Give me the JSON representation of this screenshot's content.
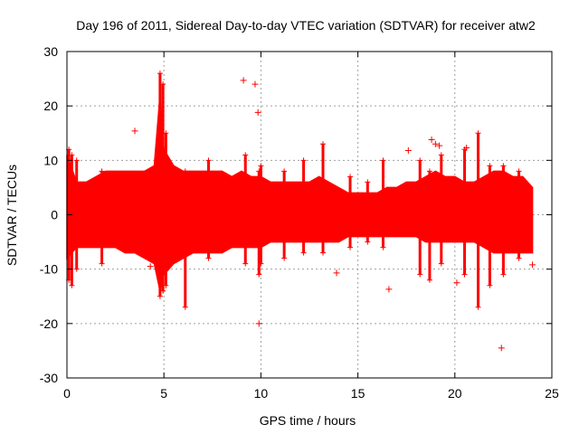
{
  "chart_data": {
    "type": "scatter",
    "title": "Day 196 of 2011, Sidereal Day-to-day VTEC variation (SDTVAR) for receiver atw2",
    "xlabel": "GPS time / hours",
    "ylabel": "SDTVAR / TECUs",
    "xlim": [
      0,
      25
    ],
    "ylim": [
      -30,
      30
    ],
    "xticks": [
      0,
      5,
      10,
      15,
      20,
      25
    ],
    "yticks": [
      -30,
      -20,
      -10,
      0,
      10,
      20,
      30
    ],
    "xtick_labels": [
      "0",
      "5",
      "10",
      "15",
      "20",
      "25"
    ],
    "ytick_labels": [
      "-30",
      "-20",
      "-10",
      "0",
      "10",
      "20",
      "30"
    ],
    "grid": true,
    "marker": "+",
    "color": "#ff0000",
    "envelope": {
      "x": [
        0,
        0.5,
        1,
        1.5,
        2,
        2.5,
        3,
        3.5,
        4,
        4.5,
        4.8,
        5.0,
        5.5,
        6,
        6.5,
        7,
        7.5,
        8,
        8.5,
        9,
        9.5,
        10,
        10.5,
        11,
        11.5,
        12,
        12.5,
        13,
        13.5,
        14,
        14.5,
        15,
        15.5,
        16,
        16.5,
        17,
        17.5,
        18,
        18.5,
        19,
        19.5,
        20,
        20.5,
        21,
        21.5,
        22,
        22.5,
        23,
        23.5,
        24
      ],
      "upper": [
        11,
        6,
        6,
        7,
        8,
        8,
        8,
        8,
        8,
        9,
        22,
        12,
        9,
        8,
        8,
        8,
        8,
        8,
        7,
        8,
        7,
        7,
        6,
        6,
        6,
        6,
        6,
        7,
        6,
        5,
        4,
        4,
        4,
        4,
        5,
        5,
        6,
        6,
        7,
        8,
        7,
        7,
        6,
        6,
        7,
        8,
        8,
        7,
        7,
        5
      ],
      "lower": [
        -8,
        -6,
        -6,
        -6,
        -6,
        -6,
        -7,
        -7,
        -8,
        -9,
        -14,
        -11,
        -9,
        -8,
        -7,
        -7,
        -7,
        -7,
        -6,
        -6,
        -6,
        -6,
        -5,
        -5,
        -5,
        -5,
        -5,
        -5,
        -5,
        -5,
        -4,
        -4,
        -4,
        -4,
        -4,
        -4,
        -4,
        -4,
        -5,
        -5,
        -5,
        -5,
        -5,
        -5,
        -6,
        -7,
        -7,
        -7,
        -7,
        -7
      ]
    },
    "spikes": [
      {
        "x": 0.1,
        "y0": -12,
        "y1": 12
      },
      {
        "x": 0.25,
        "y0": -13,
        "y1": 11
      },
      {
        "x": 0.5,
        "y0": -10,
        "y1": 10
      },
      {
        "x": 1.8,
        "y0": -9,
        "y1": 8
      },
      {
        "x": 4.8,
        "y0": -15,
        "y1": 26
      },
      {
        "x": 4.95,
        "y0": -14,
        "y1": 24
      },
      {
        "x": 5.1,
        "y0": -13,
        "y1": 15
      },
      {
        "x": 6.1,
        "y0": -17,
        "y1": 8
      },
      {
        "x": 7.3,
        "y0": -8,
        "y1": 10
      },
      {
        "x": 9.2,
        "y0": -9,
        "y1": 11
      },
      {
        "x": 9.9,
        "y0": -11,
        "y1": 8
      },
      {
        "x": 10.0,
        "y0": -9,
        "y1": 9
      },
      {
        "x": 11.2,
        "y0": -8,
        "y1": 8
      },
      {
        "x": 12.2,
        "y0": -7,
        "y1": 10
      },
      {
        "x": 13.2,
        "y0": -7,
        "y1": 13
      },
      {
        "x": 14.6,
        "y0": -6,
        "y1": 7
      },
      {
        "x": 15.5,
        "y0": -5,
        "y1": 6
      },
      {
        "x": 16.3,
        "y0": -6,
        "y1": 10
      },
      {
        "x": 18.2,
        "y0": -11,
        "y1": 10
      },
      {
        "x": 18.7,
        "y0": -12,
        "y1": 8
      },
      {
        "x": 19.3,
        "y0": -9,
        "y1": 11
      },
      {
        "x": 20.5,
        "y0": -11,
        "y1": 12
      },
      {
        "x": 21.2,
        "y0": -17,
        "y1": 15
      },
      {
        "x": 21.8,
        "y0": -13,
        "y1": 9
      },
      {
        "x": 22.5,
        "y0": -11,
        "y1": 9
      },
      {
        "x": 23.3,
        "y0": -8,
        "y1": 8
      }
    ],
    "outliers": [
      {
        "x": 3.5,
        "y": 15.4
      },
      {
        "x": 4.3,
        "y": -9.5
      },
      {
        "x": 9.1,
        "y": 24.7
      },
      {
        "x": 9.7,
        "y": 24.0
      },
      {
        "x": 9.85,
        "y": 18.8
      },
      {
        "x": 9.9,
        "y": -20.0
      },
      {
        "x": 13.9,
        "y": -10.7
      },
      {
        "x": 16.6,
        "y": -13.7
      },
      {
        "x": 17.6,
        "y": 11.8
      },
      {
        "x": 18.8,
        "y": 13.8
      },
      {
        "x": 19.0,
        "y": 13.0
      },
      {
        "x": 19.2,
        "y": 12.7
      },
      {
        "x": 20.6,
        "y": 12.3
      },
      {
        "x": 22.4,
        "y": -24.5
      },
      {
        "x": 24.0,
        "y": -9.2
      },
      {
        "x": 20.1,
        "y": -12.5
      }
    ]
  }
}
